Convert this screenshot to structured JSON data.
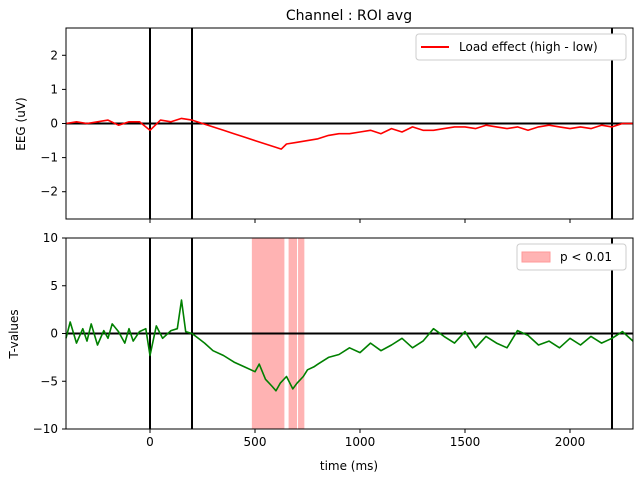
{
  "chart_data": [
    {
      "type": "line",
      "title": "Channel : ROI avg",
      "xlabel": "",
      "ylabel": "EEG (uV)",
      "xlim": [
        -400,
        2300
      ],
      "ylim": [
        -2.8,
        2.8
      ],
      "yticks": [
        -2,
        -1,
        0,
        1,
        2
      ],
      "grid": false,
      "legend_position": "top-right",
      "hline": 0,
      "vlines": [
        0,
        200,
        2200
      ],
      "series": [
        {
          "name": "Load effect (high - low)",
          "color": "#ff0000",
          "x": [
            -400,
            -350,
            -300,
            -250,
            -200,
            -150,
            -100,
            -50,
            0,
            50,
            100,
            150,
            200,
            250,
            300,
            350,
            400,
            450,
            500,
            550,
            600,
            625,
            650,
            700,
            750,
            800,
            850,
            900,
            950,
            1000,
            1050,
            1100,
            1150,
            1200,
            1250,
            1300,
            1350,
            1400,
            1450,
            1500,
            1550,
            1600,
            1650,
            1700,
            1750,
            1800,
            1850,
            1900,
            1950,
            2000,
            2050,
            2100,
            2150,
            2200,
            2250,
            2300
          ],
          "y": [
            0.0,
            0.05,
            0.0,
            0.05,
            0.1,
            -0.05,
            0.05,
            0.05,
            -0.2,
            0.1,
            0.05,
            0.15,
            0.1,
            0.0,
            -0.1,
            -0.2,
            -0.3,
            -0.4,
            -0.5,
            -0.6,
            -0.7,
            -0.75,
            -0.6,
            -0.55,
            -0.5,
            -0.45,
            -0.35,
            -0.3,
            -0.3,
            -0.25,
            -0.2,
            -0.3,
            -0.15,
            -0.25,
            -0.1,
            -0.2,
            -0.2,
            -0.15,
            -0.1,
            -0.1,
            -0.15,
            -0.05,
            -0.1,
            -0.15,
            -0.1,
            -0.2,
            -0.1,
            -0.05,
            -0.1,
            -0.15,
            -0.1,
            -0.15,
            -0.05,
            -0.1,
            0.0,
            0.0
          ]
        }
      ]
    },
    {
      "type": "line",
      "title": "",
      "xlabel": "time (ms)",
      "ylabel": "T-values",
      "xlim": [
        -400,
        2300
      ],
      "ylim": [
        -10,
        10
      ],
      "yticks": [
        -10,
        -5,
        0,
        5,
        10
      ],
      "xticks": [
        0,
        500,
        1000,
        1500,
        2000
      ],
      "grid": false,
      "legend_position": "top-right",
      "hline": 0,
      "vlines": [
        0,
        200,
        2200
      ],
      "shaded_regions": {
        "label": "p < 0.01",
        "color": "#ff9999",
        "ranges": [
          [
            485,
            640
          ],
          [
            660,
            700
          ],
          [
            705,
            735
          ]
        ]
      },
      "series": [
        {
          "name": "",
          "color": "#008000",
          "x": [
            -400,
            -380,
            -350,
            -320,
            -300,
            -280,
            -250,
            -220,
            -200,
            -180,
            -150,
            -120,
            -100,
            -80,
            -50,
            -20,
            0,
            30,
            60,
            100,
            130,
            150,
            170,
            200,
            230,
            260,
            300,
            350,
            400,
            450,
            500,
            520,
            550,
            580,
            600,
            620,
            650,
            680,
            700,
            730,
            750,
            780,
            800,
            850,
            900,
            950,
            1000,
            1050,
            1100,
            1150,
            1200,
            1250,
            1300,
            1350,
            1400,
            1450,
            1500,
            1550,
            1600,
            1650,
            1700,
            1750,
            1800,
            1850,
            1900,
            1950,
            2000,
            2050,
            2100,
            2150,
            2200,
            2250,
            2300
          ],
          "y": [
            -0.5,
            1.2,
            -1.0,
            0.5,
            -0.8,
            1.0,
            -1.2,
            0.3,
            -0.5,
            1.0,
            0.2,
            -1.0,
            0.5,
            -0.8,
            0.2,
            0.5,
            -2.3,
            0.8,
            -0.5,
            0.3,
            0.5,
            3.5,
            0.2,
            0.0,
            -0.5,
            -1.0,
            -1.8,
            -2.3,
            -3.0,
            -3.5,
            -4.0,
            -3.2,
            -4.8,
            -5.5,
            -6.0,
            -5.2,
            -4.5,
            -5.8,
            -5.2,
            -4.5,
            -3.8,
            -3.5,
            -3.2,
            -2.5,
            -2.2,
            -1.5,
            -2.0,
            -1.0,
            -1.8,
            -1.2,
            -0.5,
            -1.5,
            -0.8,
            0.5,
            -0.3,
            -1.0,
            0.2,
            -1.5,
            -0.3,
            -1.0,
            -1.5,
            0.3,
            -0.2,
            -1.2,
            -0.8,
            -1.5,
            -0.5,
            -1.2,
            -0.3,
            -1.0,
            -0.5,
            0.2,
            -0.8
          ]
        }
      ]
    }
  ]
}
